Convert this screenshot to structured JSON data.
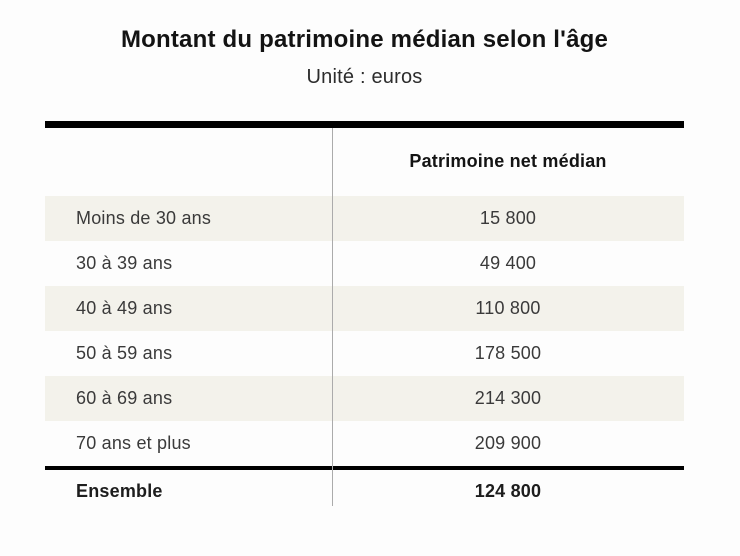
{
  "header": {
    "title": "Montant du patrimoine médian selon l'âge",
    "subtitle": "Unité : euros"
  },
  "table": {
    "column_header": "Patrimoine net médian",
    "rows": [
      {
        "label": "Moins de 30 ans",
        "value": "15 800"
      },
      {
        "label": "30 à 39 ans",
        "value": "49 400"
      },
      {
        "label": "40 à 49 ans",
        "value": "110 800"
      },
      {
        "label": "50 à 59 ans",
        "value": "178 500"
      },
      {
        "label": "60 à 69 ans",
        "value": "214 300"
      },
      {
        "label": "70 ans et plus",
        "value": "209 900"
      }
    ],
    "total": {
      "label": "Ensemble",
      "value": "124 800"
    }
  },
  "colors": {
    "row_shade": "#f3f2eb",
    "column_divider": "#ababab",
    "rule": "#000000",
    "title_text": "#131313",
    "body_text": "#3a3a3a"
  },
  "chart_data": {
    "type": "table",
    "title": "Montant du patrimoine médian selon l'âge",
    "subtitle": "Unité : euros",
    "columns": [
      "",
      "Patrimoine net médian"
    ],
    "categories": [
      "Moins de 30 ans",
      "30 à 39 ans",
      "40 à 49 ans",
      "50 à 59 ans",
      "60 à 69 ans",
      "70 ans et plus"
    ],
    "values": [
      15800,
      49400,
      110800,
      178500,
      214300,
      209900
    ],
    "total_label": "Ensemble",
    "total_value": 124800,
    "unit": "euros"
  }
}
